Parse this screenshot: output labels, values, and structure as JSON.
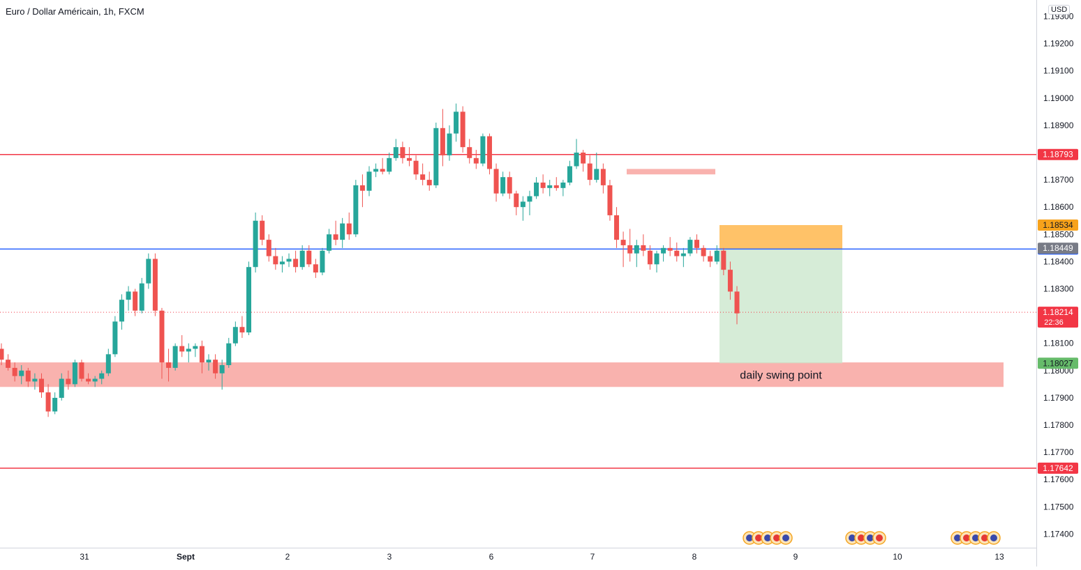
{
  "header": {
    "symbol_title": "Euro / Dollar Américain, 1h, FXCM",
    "currency": "USD"
  },
  "colors": {
    "bull": "#26a69a",
    "bear": "#ef5350",
    "resistance": "#f23645",
    "entry": "#2962ff",
    "zone": "#f9b2ae",
    "stop": "#ffb74d",
    "target": "#c8e6c9",
    "last": "#f23645"
  },
  "chart_data": {
    "type": "candlestick",
    "ylim": [
      1.1735,
      1.1936
    ],
    "y_ticks": [
      "1.17400",
      "1.17500",
      "1.17600",
      "1.17700",
      "1.17800",
      "1.17900",
      "1.18000",
      "1.18100",
      "1.18200",
      "1.18300",
      "1.18400",
      "1.18500",
      "1.18600",
      "1.18700",
      "1.18800",
      "1.18900",
      "1.19000",
      "1.19100",
      "1.19200",
      "1.19300"
    ],
    "x_ticks": [
      "31",
      "Sept",
      "2",
      "3",
      "6",
      "7",
      "8",
      "9",
      "10",
      "13"
    ],
    "hlines": [
      {
        "label": "1.18793",
        "value": 1.18793,
        "kind": "resistance"
      },
      {
        "label": "1.18446",
        "value": 1.18446,
        "kind": "entry"
      },
      {
        "label": "1.17642",
        "value": 1.17642,
        "kind": "resistance"
      }
    ],
    "price_tags": [
      {
        "label": "1.18534",
        "value": 1.18534,
        "kind": "stop"
      },
      {
        "label": "1.18449",
        "value": 1.18449,
        "kind": "grey"
      },
      {
        "label": "1.18027",
        "value": 1.18027,
        "kind": "target"
      }
    ],
    "last_price": {
      "label": "1.18214",
      "value": 1.18214,
      "countdown": "22:36"
    },
    "zones": [
      {
        "label": "daily swing point",
        "from": 1.1794,
        "to": 1.1803
      },
      {
        "label": "",
        "from": 1.1872,
        "to": 1.1874
      }
    ],
    "position": {
      "entry": 1.18446,
      "stop": 1.18534,
      "target": 1.18027
    },
    "candles_ohlc": [
      [
        1.1808,
        1.181,
        1.1802,
        1.1804
      ],
      [
        1.1804,
        1.1806,
        1.18,
        1.1801
      ],
      [
        1.1801,
        1.1803,
        1.1796,
        1.1798
      ],
      [
        1.1798,
        1.1802,
        1.1795,
        1.18
      ],
      [
        1.18,
        1.1801,
        1.1794,
        1.1796
      ],
      [
        1.1796,
        1.1799,
        1.1793,
        1.1797
      ],
      [
        1.1797,
        1.1799,
        1.179,
        1.1792
      ],
      [
        1.1792,
        1.1795,
        1.1783,
        1.1785
      ],
      [
        1.1785,
        1.1792,
        1.1784,
        1.179
      ],
      [
        1.179,
        1.1799,
        1.1789,
        1.1797
      ],
      [
        1.1797,
        1.18,
        1.1793,
        1.1795
      ],
      [
        1.1795,
        1.1804,
        1.1794,
        1.1803
      ],
      [
        1.1803,
        1.1804,
        1.1796,
        1.1797
      ],
      [
        1.1797,
        1.1799,
        1.1795,
        1.1796
      ],
      [
        1.1796,
        1.1798,
        1.1794,
        1.1797
      ],
      [
        1.1797,
        1.18,
        1.1795,
        1.1799
      ],
      [
        1.1799,
        1.1808,
        1.1798,
        1.1806
      ],
      [
        1.1806,
        1.182,
        1.1805,
        1.1818
      ],
      [
        1.1818,
        1.1828,
        1.1815,
        1.1826
      ],
      [
        1.1826,
        1.1831,
        1.1822,
        1.1829
      ],
      [
        1.1829,
        1.183,
        1.182,
        1.1822
      ],
      [
        1.1822,
        1.1834,
        1.1821,
        1.1832
      ],
      [
        1.1832,
        1.1843,
        1.183,
        1.1841
      ],
      [
        1.1841,
        1.1843,
        1.182,
        1.1822
      ],
      [
        1.1822,
        1.1823,
        1.1797,
        1.1803
      ],
      [
        1.1803,
        1.1808,
        1.1796,
        1.1801
      ],
      [
        1.1801,
        1.181,
        1.18,
        1.1809
      ],
      [
        1.1809,
        1.1813,
        1.1805,
        1.1807
      ],
      [
        1.1807,
        1.181,
        1.1803,
        1.1808
      ],
      [
        1.1808,
        1.181,
        1.1805,
        1.1809
      ],
      [
        1.1809,
        1.1811,
        1.1799,
        1.1803
      ],
      [
        1.1803,
        1.1806,
        1.18,
        1.1804
      ],
      [
        1.1804,
        1.1806,
        1.1797,
        1.1799
      ],
      [
        1.1799,
        1.1804,
        1.1793,
        1.1802
      ],
      [
        1.1802,
        1.1812,
        1.1801,
        1.181
      ],
      [
        1.181,
        1.1818,
        1.1809,
        1.1816
      ],
      [
        1.1816,
        1.182,
        1.1812,
        1.1814
      ],
      [
        1.1814,
        1.184,
        1.1813,
        1.1838
      ],
      [
        1.1838,
        1.1858,
        1.1836,
        1.1855
      ],
      [
        1.1855,
        1.1857,
        1.1846,
        1.1848
      ],
      [
        1.1848,
        1.185,
        1.184,
        1.1842
      ],
      [
        1.1842,
        1.1845,
        1.1837,
        1.1839
      ],
      [
        1.1839,
        1.1842,
        1.1836,
        1.184
      ],
      [
        1.184,
        1.1843,
        1.1838,
        1.1841
      ],
      [
        1.1841,
        1.1844,
        1.1836,
        1.1838
      ],
      [
        1.1838,
        1.1846,
        1.1837,
        1.1844
      ],
      [
        1.1844,
        1.1846,
        1.1838,
        1.1839
      ],
      [
        1.1839,
        1.1841,
        1.1834,
        1.1836
      ],
      [
        1.1836,
        1.1845,
        1.1835,
        1.1844
      ],
      [
        1.1844,
        1.1852,
        1.1843,
        1.185
      ],
      [
        1.185,
        1.1855,
        1.1846,
        1.1848
      ],
      [
        1.1848,
        1.1856,
        1.1845,
        1.1854
      ],
      [
        1.1854,
        1.1858,
        1.1848,
        1.185
      ],
      [
        1.185,
        1.187,
        1.1849,
        1.1868
      ],
      [
        1.1868,
        1.1872,
        1.186,
        1.1866
      ],
      [
        1.1866,
        1.1875,
        1.1864,
        1.1873
      ],
      [
        1.1873,
        1.1876,
        1.1871,
        1.1874
      ],
      [
        1.1874,
        1.1878,
        1.1872,
        1.1873
      ],
      [
        1.1873,
        1.188,
        1.1872,
        1.1878
      ],
      [
        1.1878,
        1.1885,
        1.1877,
        1.1882
      ],
      [
        1.1882,
        1.1884,
        1.1876,
        1.1878
      ],
      [
        1.1878,
        1.1882,
        1.1875,
        1.1877
      ],
      [
        1.1877,
        1.1879,
        1.187,
        1.1872
      ],
      [
        1.1872,
        1.1876,
        1.1868,
        1.187
      ],
      [
        1.187,
        1.1873,
        1.1866,
        1.1868
      ],
      [
        1.1868,
        1.1891,
        1.1867,
        1.1889
      ],
      [
        1.1889,
        1.1896,
        1.1875,
        1.1879
      ],
      [
        1.1879,
        1.189,
        1.1877,
        1.1887
      ],
      [
        1.1887,
        1.1898,
        1.1884,
        1.1895
      ],
      [
        1.1895,
        1.1897,
        1.188,
        1.1882
      ],
      [
        1.1882,
        1.1885,
        1.1876,
        1.1878
      ],
      [
        1.1878,
        1.1881,
        1.1874,
        1.1876
      ],
      [
        1.1876,
        1.1887,
        1.1875,
        1.1886
      ],
      [
        1.1886,
        1.1887,
        1.1872,
        1.1874
      ],
      [
        1.1874,
        1.1876,
        1.1862,
        1.1865
      ],
      [
        1.1865,
        1.1873,
        1.1864,
        1.1871
      ],
      [
        1.1871,
        1.1873,
        1.1863,
        1.1865
      ],
      [
        1.1865,
        1.1866,
        1.1857,
        1.186
      ],
      [
        1.186,
        1.1864,
        1.1855,
        1.1862
      ],
      [
        1.1862,
        1.1866,
        1.1857,
        1.1864
      ],
      [
        1.1864,
        1.1871,
        1.1863,
        1.1869
      ],
      [
        1.1869,
        1.1872,
        1.1865,
        1.1867
      ],
      [
        1.1867,
        1.187,
        1.1864,
        1.1868
      ],
      [
        1.1868,
        1.1871,
        1.1866,
        1.1867
      ],
      [
        1.1867,
        1.187,
        1.1864,
        1.1869
      ],
      [
        1.1869,
        1.1877,
        1.1868,
        1.1875
      ],
      [
        1.1875,
        1.1885,
        1.1874,
        1.188
      ],
      [
        1.188,
        1.1881,
        1.1873,
        1.1876
      ],
      [
        1.1876,
        1.1879,
        1.1868,
        1.187
      ],
      [
        1.187,
        1.188,
        1.1869,
        1.1874
      ],
      [
        1.1874,
        1.1876,
        1.1865,
        1.1868
      ],
      [
        1.1868,
        1.187,
        1.1855,
        1.1857
      ],
      [
        1.1857,
        1.186,
        1.1845,
        1.1848
      ],
      [
        1.1848,
        1.1851,
        1.1838,
        1.1846
      ],
      [
        1.1846,
        1.1852,
        1.184,
        1.1843
      ],
      [
        1.1843,
        1.1848,
        1.1838,
        1.1846
      ],
      [
        1.1846,
        1.185,
        1.1842,
        1.1844
      ],
      [
        1.1844,
        1.1846,
        1.1837,
        1.1839
      ],
      [
        1.1839,
        1.1844,
        1.1836,
        1.1843
      ],
      [
        1.1843,
        1.1846,
        1.184,
        1.1845
      ],
      [
        1.1845,
        1.1849,
        1.1842,
        1.1844
      ],
      [
        1.1844,
        1.1847,
        1.184,
        1.1842
      ],
      [
        1.1842,
        1.1845,
        1.1838,
        1.1843
      ],
      [
        1.1843,
        1.1849,
        1.1842,
        1.1848
      ],
      [
        1.1848,
        1.185,
        1.1843,
        1.1845
      ],
      [
        1.1845,
        1.1846,
        1.184,
        1.1842
      ],
      [
        1.1842,
        1.1844,
        1.1838,
        1.184
      ],
      [
        1.184,
        1.1846,
        1.1839,
        1.1844
      ],
      [
        1.1844,
        1.1845,
        1.1835,
        1.1837
      ],
      [
        1.1837,
        1.184,
        1.1826,
        1.1829
      ],
      [
        1.1829,
        1.1831,
        1.1817,
        1.1821
      ]
    ]
  }
}
